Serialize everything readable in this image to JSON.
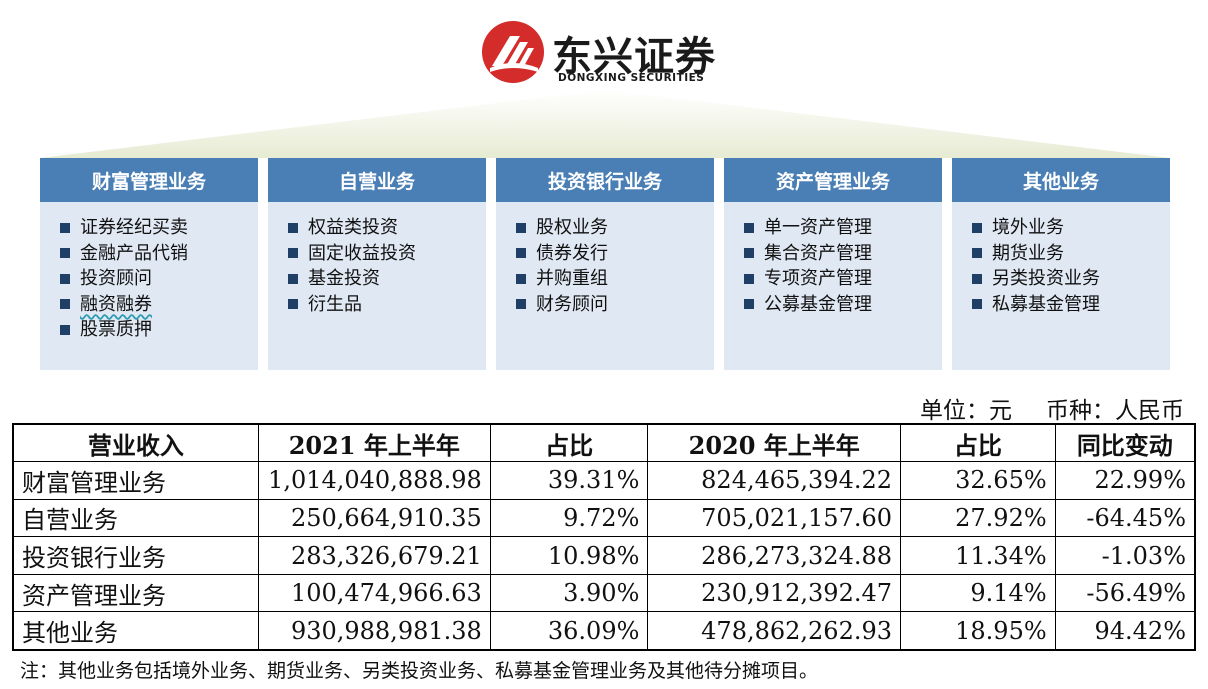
{
  "logo": {
    "name_cn": "东兴证券",
    "name_en": "DONGXING SECURITIES",
    "brand_color": "#d42b2b"
  },
  "columns": [
    {
      "title": "财富管理业务",
      "items": [
        "证券经纪买卖",
        "金融产品代销",
        "投资顾问",
        "融资融券",
        "股票质押"
      ]
    },
    {
      "title": "自营业务",
      "items": [
        "权益类投资",
        "固定收益投资",
        "基金投资",
        "衍生品"
      ]
    },
    {
      "title": "投资银行业务",
      "items": [
        "股权业务",
        "债券发行",
        "并购重组",
        "财务顾问"
      ]
    },
    {
      "title": "资产管理业务",
      "items": [
        "单一资产管理",
        "集合资产管理",
        "专项资产管理",
        "公募基金管理"
      ]
    },
    {
      "title": "其他业务",
      "items": [
        "境外业务",
        "期货业务",
        "另类投资业务",
        "私募基金管理"
      ]
    }
  ],
  "unit": {
    "unit_label": "单位：元",
    "currency_label": "币种：人民币"
  },
  "table": {
    "headers": [
      "营业收入",
      "2021 年上半年",
      "占比",
      "2020 年上半年",
      "占比",
      "同比变动"
    ],
    "rows": [
      [
        "财富管理业务",
        "1,014,040,888.98",
        "39.31%",
        "824,465,394.22",
        "32.65%",
        "22.99%"
      ],
      [
        "自营业务",
        "250,664,910.35",
        "9.72%",
        "705,021,157.60",
        "27.92%",
        "-64.45%"
      ],
      [
        "投资银行业务",
        "283,326,679.21",
        "10.98%",
        "286,273,324.88",
        "11.34%",
        "-1.03%"
      ],
      [
        "资产管理业务",
        "100,474,966.63",
        "3.90%",
        "230,912,392.47",
        "9.14%",
        "-56.49%"
      ],
      [
        "其他业务",
        "930,988,981.38",
        "36.09%",
        "478,862,262.93",
        "18.95%",
        "94.42%"
      ]
    ]
  },
  "note": "注：其他业务包括境外业务、期货业务、另类投资业务、私募基金管理业务及其他待分摊项目。"
}
